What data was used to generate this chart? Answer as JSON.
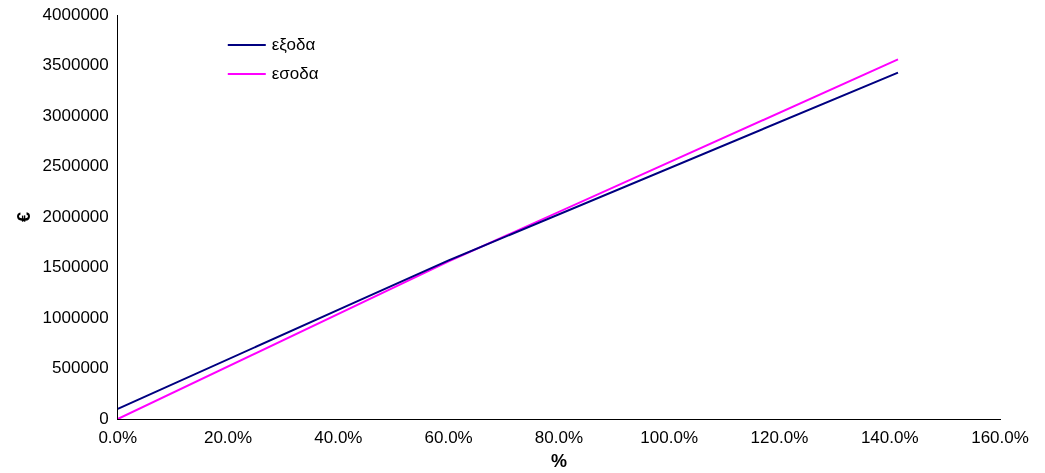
{
  "chart_data": {
    "type": "line",
    "xlabel": "%",
    "ylabel": "€",
    "series": [
      {
        "name": "εξοδα",
        "color": "#000080",
        "x": [
          0,
          44,
          60,
          141.5
        ],
        "values": [
          100000,
          1180000,
          1570000,
          3430000
        ]
      },
      {
        "name": "εσοδα",
        "color": "#ff00ff",
        "x": [
          0,
          60,
          141.5
        ],
        "values": [
          0,
          1560000,
          3560000
        ]
      }
    ],
    "xlim": [
      0,
      160
    ],
    "xticks": [
      {
        "value": 0,
        "label": "0.0%"
      },
      {
        "value": 20,
        "label": "20.0%"
      },
      {
        "value": 40,
        "label": "40.0%"
      },
      {
        "value": 60,
        "label": "60.0%"
      },
      {
        "value": 80,
        "label": "80.0%"
      },
      {
        "value": 100,
        "label": "100.0%"
      },
      {
        "value": 120,
        "label": "120.0%"
      },
      {
        "value": 140,
        "label": "140.0%"
      },
      {
        "value": 160,
        "label": "160.0%"
      }
    ],
    "ylim": [
      0,
      4000000
    ],
    "yticks": [
      0,
      500000,
      1000000,
      1500000,
      2000000,
      2500000,
      3000000,
      3500000,
      4000000
    ],
    "grid": false,
    "legend": "top left",
    "marker": "none",
    "line_style": "solid"
  }
}
